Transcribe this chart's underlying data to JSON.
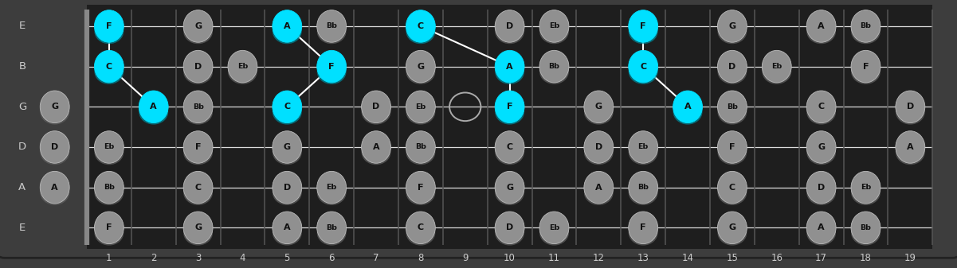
{
  "bg_color": "#3d3d3d",
  "fretboard_color": "#1e1e1e",
  "string_color": "#dddddd",
  "fret_color": "#555555",
  "nut_color": "#888888",
  "note_color_normal": "#909090",
  "note_color_highlight": "#00e0ff",
  "note_shadow_normal": "#606060",
  "note_shadow_highlight": "#008899",
  "note_border_normal": "#bbbbbb",
  "text_color": "#111111",
  "label_color": "#cccccc",
  "fret_num_color": "#cccccc",
  "string_names": [
    "E",
    "B",
    "G",
    "D",
    "A",
    "E"
  ],
  "fret_numbers": [
    1,
    2,
    3,
    4,
    5,
    6,
    7,
    8,
    9,
    10,
    11,
    12,
    13,
    14,
    15,
    16,
    17,
    18,
    19
  ],
  "num_frets": 19,
  "num_strings": 6,
  "notes": [
    {
      "string": 0,
      "fret": 1,
      "label": "F",
      "h": true
    },
    {
      "string": 0,
      "fret": 3,
      "label": "G",
      "h": false
    },
    {
      "string": 0,
      "fret": 5,
      "label": "A",
      "h": true
    },
    {
      "string": 0,
      "fret": 6,
      "label": "Bb",
      "h": false
    },
    {
      "string": 0,
      "fret": 8,
      "label": "C",
      "h": true
    },
    {
      "string": 0,
      "fret": 10,
      "label": "D",
      "h": false
    },
    {
      "string": 0,
      "fret": 11,
      "label": "Eb",
      "h": false
    },
    {
      "string": 0,
      "fret": 13,
      "label": "F",
      "h": true
    },
    {
      "string": 0,
      "fret": 15,
      "label": "G",
      "h": false
    },
    {
      "string": 0,
      "fret": 17,
      "label": "A",
      "h": false
    },
    {
      "string": 0,
      "fret": 18,
      "label": "Bb",
      "h": false
    },
    {
      "string": 1,
      "fret": 1,
      "label": "C",
      "h": true
    },
    {
      "string": 1,
      "fret": 3,
      "label": "D",
      "h": false
    },
    {
      "string": 1,
      "fret": 4,
      "label": "Eb",
      "h": false
    },
    {
      "string": 1,
      "fret": 6,
      "label": "F",
      "h": true
    },
    {
      "string": 1,
      "fret": 8,
      "label": "G",
      "h": false
    },
    {
      "string": 1,
      "fret": 10,
      "label": "A",
      "h": true
    },
    {
      "string": 1,
      "fret": 11,
      "label": "Bb",
      "h": false
    },
    {
      "string": 1,
      "fret": 13,
      "label": "C",
      "h": true
    },
    {
      "string": 1,
      "fret": 15,
      "label": "D",
      "h": false
    },
    {
      "string": 1,
      "fret": 16,
      "label": "Eb",
      "h": false
    },
    {
      "string": 1,
      "fret": 18,
      "label": "F",
      "h": false
    },
    {
      "string": 2,
      "fret": 0,
      "label": "G",
      "h": false
    },
    {
      "string": 2,
      "fret": 2,
      "label": "A",
      "h": true
    },
    {
      "string": 2,
      "fret": 3,
      "label": "Bb",
      "h": false
    },
    {
      "string": 2,
      "fret": 5,
      "label": "C",
      "h": true
    },
    {
      "string": 2,
      "fret": 7,
      "label": "D",
      "h": false
    },
    {
      "string": 2,
      "fret": 8,
      "label": "Eb",
      "h": false
    },
    {
      "string": 2,
      "fret": 9,
      "label": "",
      "h": false,
      "oc": true
    },
    {
      "string": 2,
      "fret": 10,
      "label": "F",
      "h": true
    },
    {
      "string": 2,
      "fret": 12,
      "label": "G",
      "h": false
    },
    {
      "string": 2,
      "fret": 14,
      "label": "A",
      "h": true
    },
    {
      "string": 2,
      "fret": 15,
      "label": "Bb",
      "h": false
    },
    {
      "string": 2,
      "fret": 17,
      "label": "C",
      "h": false
    },
    {
      "string": 2,
      "fret": 19,
      "label": "D",
      "h": false
    },
    {
      "string": 3,
      "fret": 0,
      "label": "D",
      "h": false
    },
    {
      "string": 3,
      "fret": 1,
      "label": "Eb",
      "h": false
    },
    {
      "string": 3,
      "fret": 3,
      "label": "F",
      "h": false
    },
    {
      "string": 3,
      "fret": 5,
      "label": "G",
      "h": false
    },
    {
      "string": 3,
      "fret": 7,
      "label": "A",
      "h": false
    },
    {
      "string": 3,
      "fret": 8,
      "label": "Bb",
      "h": false
    },
    {
      "string": 3,
      "fret": 10,
      "label": "C",
      "h": false
    },
    {
      "string": 3,
      "fret": 12,
      "label": "D",
      "h": false
    },
    {
      "string": 3,
      "fret": 13,
      "label": "Eb",
      "h": false
    },
    {
      "string": 3,
      "fret": 15,
      "label": "F",
      "h": false
    },
    {
      "string": 3,
      "fret": 17,
      "label": "G",
      "h": false
    },
    {
      "string": 3,
      "fret": 19,
      "label": "A",
      "h": false
    },
    {
      "string": 4,
      "fret": 0,
      "label": "A",
      "h": false
    },
    {
      "string": 4,
      "fret": 1,
      "label": "Bb",
      "h": false
    },
    {
      "string": 4,
      "fret": 3,
      "label": "C",
      "h": false
    },
    {
      "string": 4,
      "fret": 5,
      "label": "D",
      "h": false
    },
    {
      "string": 4,
      "fret": 6,
      "label": "Eb",
      "h": false
    },
    {
      "string": 4,
      "fret": 8,
      "label": "F",
      "h": false
    },
    {
      "string": 4,
      "fret": 10,
      "label": "G",
      "h": false
    },
    {
      "string": 4,
      "fret": 12,
      "label": "A",
      "h": false
    },
    {
      "string": 4,
      "fret": 13,
      "label": "Bb",
      "h": false
    },
    {
      "string": 4,
      "fret": 15,
      "label": "C",
      "h": false
    },
    {
      "string": 4,
      "fret": 17,
      "label": "D",
      "h": false
    },
    {
      "string": 4,
      "fret": 18,
      "label": "Eb",
      "h": false
    },
    {
      "string": 5,
      "fret": 1,
      "label": "F",
      "h": false
    },
    {
      "string": 5,
      "fret": 3,
      "label": "G",
      "h": false
    },
    {
      "string": 5,
      "fret": 5,
      "label": "A",
      "h": false
    },
    {
      "string": 5,
      "fret": 6,
      "label": "Bb",
      "h": false
    },
    {
      "string": 5,
      "fret": 8,
      "label": "C",
      "h": false
    },
    {
      "string": 5,
      "fret": 10,
      "label": "D",
      "h": false
    },
    {
      "string": 5,
      "fret": 11,
      "label": "Eb",
      "h": false
    },
    {
      "string": 5,
      "fret": 13,
      "label": "F",
      "h": false
    },
    {
      "string": 5,
      "fret": 15,
      "label": "G",
      "h": false
    },
    {
      "string": 5,
      "fret": 17,
      "label": "A",
      "h": false
    },
    {
      "string": 5,
      "fret": 18,
      "label": "Bb",
      "h": false
    }
  ],
  "lines": [
    {
      "fs": 0,
      "ff": 1,
      "ts": 1,
      "tf": 1
    },
    {
      "fs": 1,
      "ff": 1,
      "ts": 2,
      "tf": 2
    },
    {
      "fs": 0,
      "ff": 5,
      "ts": 1,
      "tf": 6
    },
    {
      "fs": 1,
      "ff": 6,
      "ts": 2,
      "tf": 5
    },
    {
      "fs": 0,
      "ff": 8,
      "ts": 1,
      "tf": 10
    },
    {
      "fs": 1,
      "ff": 10,
      "ts": 2,
      "tf": 10
    },
    {
      "fs": 0,
      "ff": 13,
      "ts": 1,
      "tf": 13
    },
    {
      "fs": 1,
      "ff": 13,
      "ts": 2,
      "tf": 14
    }
  ]
}
